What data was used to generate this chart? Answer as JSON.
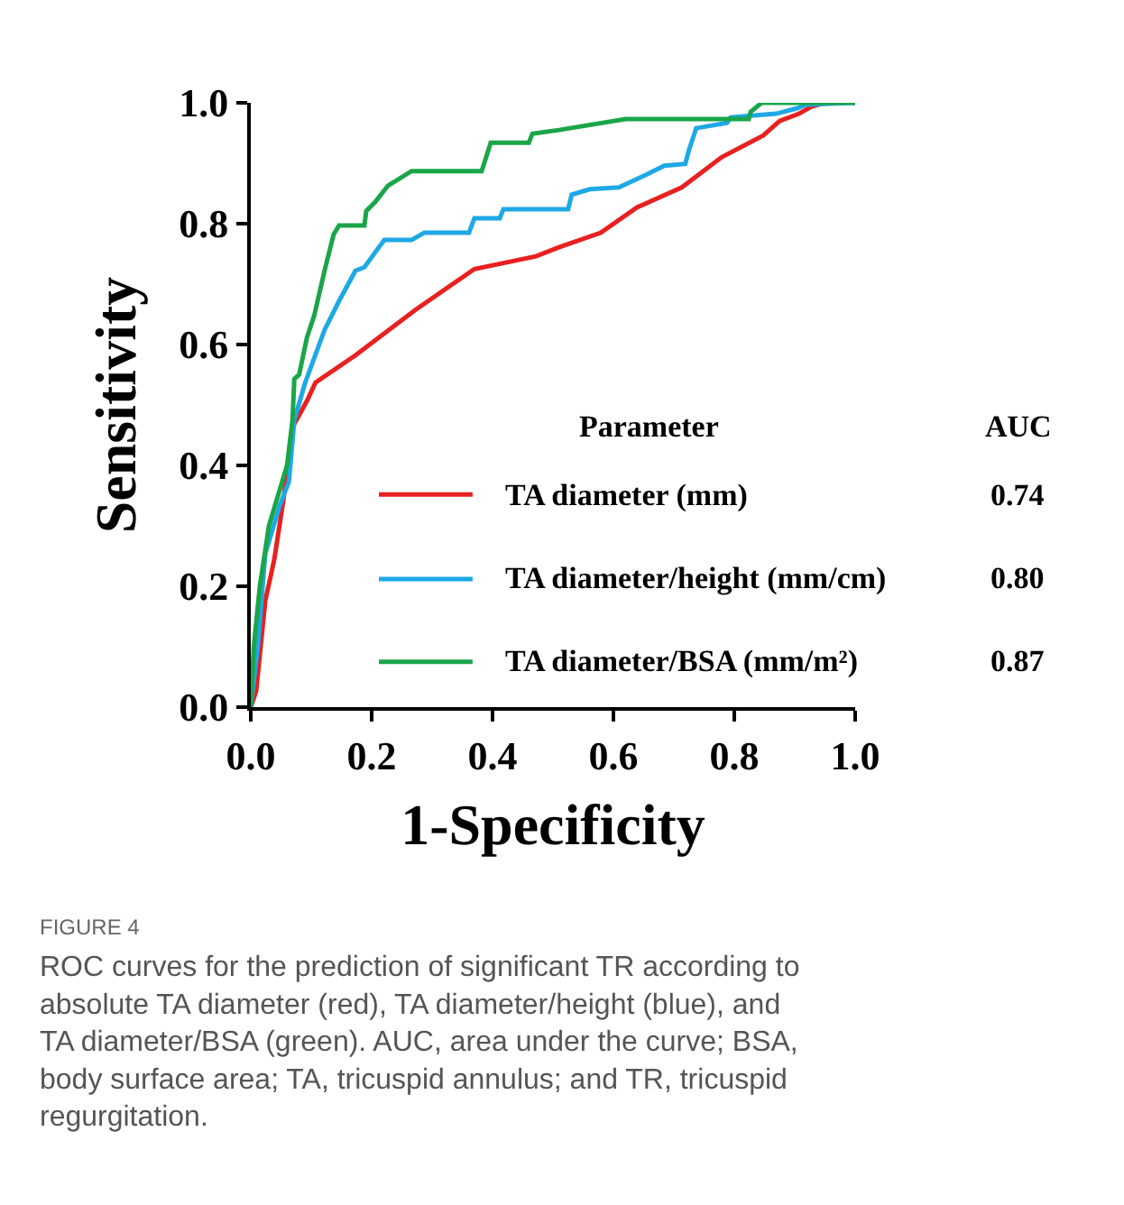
{
  "chart_data": {
    "type": "line",
    "xlabel": "1-Specificity",
    "ylabel": "Sensitivity",
    "legend_title": "Parameter",
    "legend": "bottom right",
    "xlim": [
      0,
      1.0
    ],
    "ylim": [
      0,
      1.0
    ],
    "xticks": [
      {
        "value": 0,
        "label": "0.0"
      },
      0.2,
      0.4,
      0.6,
      0.8,
      {
        "value": 1,
        "label": "1.0"
      }
    ],
    "yticks": [
      {
        "value": 0,
        "label": "0.0"
      },
      0.2,
      0.4,
      0.6,
      0.8,
      {
        "value": 1,
        "label": "1.0"
      }
    ],
    "marker": "none",
    "line_style": "solid",
    "series": [
      {
        "name": "TA diameter (mm)",
        "color": "#e8201f",
        "x": [
          0,
          0.009,
          0.024,
          0.039,
          0.054,
          0.069,
          0.093,
          0.107,
          0.173,
          0.272,
          0.37,
          0.472,
          0.51,
          0.579,
          0.639,
          0.713,
          0.779,
          0.848,
          0.875,
          0.907,
          0.928,
          0.95
        ],
        "values": [
          0,
          0.027,
          0.176,
          0.245,
          0.343,
          0.463,
          0.507,
          0.537,
          0.582,
          0.657,
          0.725,
          0.746,
          0.761,
          0.785,
          0.827,
          0.86,
          0.91,
          0.946,
          0.97,
          0.982,
          0.994,
          1.0
        ]
      },
      {
        "name": "TA diameter/height (mm/cm)",
        "color": "#1ea8e6",
        "x": [
          0,
          0.012,
          0.024,
          0.033,
          0.048,
          0.063,
          0.072,
          0.09,
          0.122,
          0.146,
          0.173,
          0.188,
          0.212,
          0.221,
          0.266,
          0.287,
          0.361,
          0.37,
          0.412,
          0.418,
          0.525,
          0.531,
          0.561,
          0.609,
          0.654,
          0.684,
          0.719,
          0.725,
          0.737,
          0.788,
          0.794,
          0.869,
          0.904,
          0.919,
          0.994,
          1.0
        ],
        "values": [
          0,
          0.104,
          0.254,
          0.284,
          0.334,
          0.373,
          0.475,
          0.537,
          0.624,
          0.672,
          0.722,
          0.728,
          0.761,
          0.773,
          0.773,
          0.785,
          0.785,
          0.809,
          0.809,
          0.824,
          0.824,
          0.848,
          0.857,
          0.86,
          0.881,
          0.896,
          0.899,
          0.922,
          0.958,
          0.967,
          0.976,
          0.982,
          0.991,
          0.997,
          1.0,
          1.0
        ]
      },
      {
        "name": "TA diameter/BSA (mm/m²)",
        "color": "#1aa548",
        "x": [
          0,
          0.005,
          0.015,
          0.03,
          0.045,
          0.06,
          0.069,
          0.072,
          0.08,
          0.093,
          0.105,
          0.122,
          0.137,
          0.146,
          0.188,
          0.191,
          0.206,
          0.227,
          0.266,
          0.382,
          0.397,
          0.46,
          0.466,
          0.51,
          0.62,
          0.824,
          0.827,
          0.845,
          1.0
        ],
        "values": [
          0,
          0.1,
          0.2,
          0.3,
          0.35,
          0.4,
          0.475,
          0.543,
          0.55,
          0.612,
          0.648,
          0.722,
          0.782,
          0.797,
          0.797,
          0.821,
          0.836,
          0.863,
          0.887,
          0.887,
          0.934,
          0.934,
          0.949,
          0.955,
          0.973,
          0.973,
          0.985,
          1.0,
          1.0
        ]
      }
    ],
    "annotations": [
      "AUC",
      "0.74",
      "0.80",
      "0.87",
      "FIGURE 4",
      "ROC curves for the prediction of significant TR according to absolute TA diameter (red), TA diameter/height (blue), and TA diameter/BSA (green). AUC, area under the curve; BSA, body surface area; TA, tricuspid annulus; and TR, tricuspid regurgitation."
    ]
  }
}
